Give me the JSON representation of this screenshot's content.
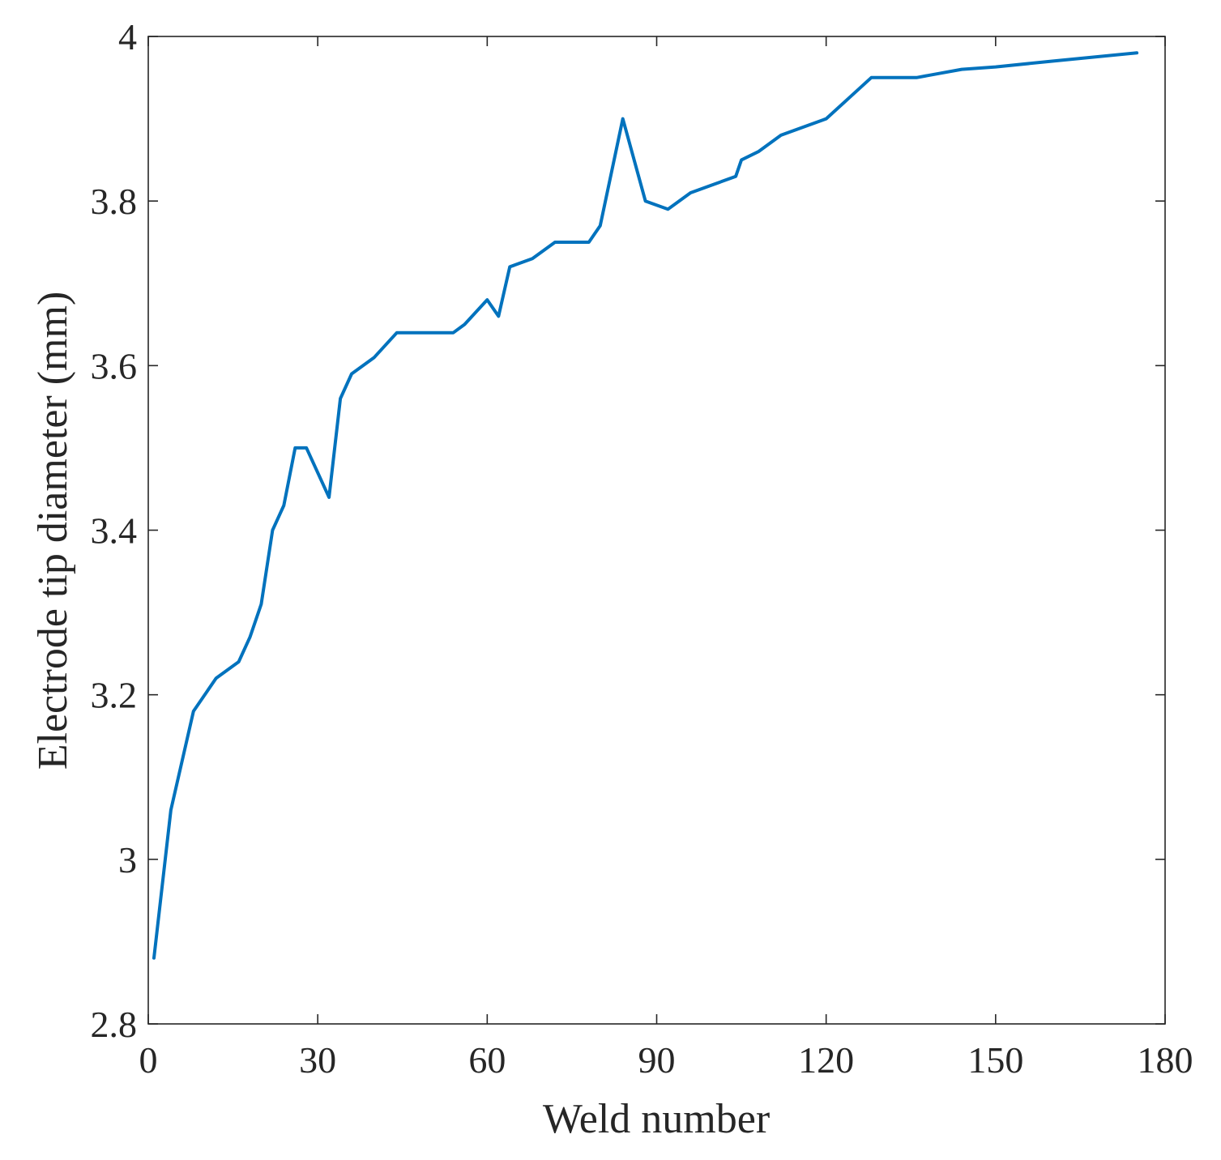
{
  "chart_data": {
    "type": "line",
    "title": "",
    "xlabel": "Weld number",
    "ylabel": "Electrode tip diameter (mm)",
    "xlim": [
      0,
      180
    ],
    "ylim": [
      2.8,
      4
    ],
    "xticks": [
      "0",
      "30",
      "60",
      "90",
      "120",
      "150",
      "180"
    ],
    "yticks": [
      "2.8",
      "3",
      "3.2",
      "3.4",
      "3.6",
      "3.8",
      "4"
    ],
    "grid": false,
    "line_color": "#0072BD",
    "series": [
      {
        "x": [
          1,
          4,
          8,
          12,
          16,
          18,
          20,
          22,
          24,
          26,
          28,
          32,
          34,
          36,
          40,
          44,
          48,
          52,
          54,
          56,
          60,
          62,
          64,
          68,
          72,
          76,
          78,
          80,
          84,
          88,
          92,
          96,
          100,
          104,
          105,
          108,
          112,
          116,
          120,
          124,
          128,
          132,
          136,
          140,
          144,
          150,
          160,
          175
        ],
        "values": [
          2.88,
          3.06,
          3.18,
          3.22,
          3.24,
          3.27,
          3.31,
          3.4,
          3.43,
          3.5,
          3.5,
          3.44,
          3.56,
          3.59,
          3.61,
          3.64,
          3.64,
          3.64,
          3.64,
          3.65,
          3.68,
          3.66,
          3.72,
          3.73,
          3.75,
          3.75,
          3.75,
          3.77,
          3.9,
          3.8,
          3.79,
          3.81,
          3.82,
          3.83,
          3.85,
          3.86,
          3.88,
          3.89,
          3.9,
          3.925,
          3.95,
          3.95,
          3.95,
          3.955,
          3.96,
          3.963,
          3.97,
          3.98
        ]
      }
    ]
  }
}
